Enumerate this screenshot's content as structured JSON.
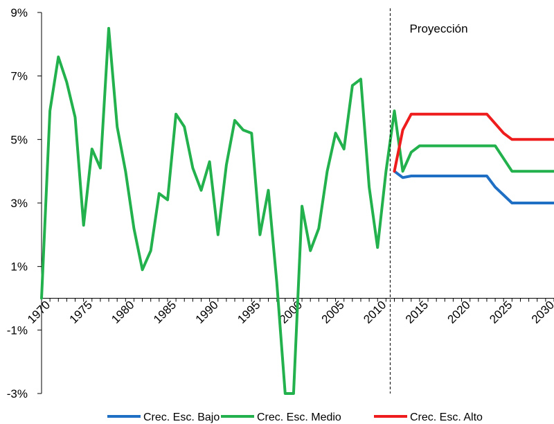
{
  "chart_data": {
    "type": "line",
    "title": "",
    "xlabel": "",
    "ylabel": "",
    "xlim": [
      1970,
      2031
    ],
    "ylim": [
      -3,
      9
    ],
    "grid": false,
    "legend_position": "bottom",
    "x_ticks": [
      1970,
      1975,
      1980,
      1985,
      1990,
      1995,
      2000,
      2005,
      2010,
      2015,
      2020,
      2025,
      2030
    ],
    "x_tick_labels": [
      "1970",
      "1975",
      "1980",
      "1985",
      "1990",
      "1995",
      "2000",
      "2005",
      "2010",
      "2015",
      "2020",
      "2025",
      "2030"
    ],
    "y_ticks": [
      -3,
      -1,
      1,
      3,
      5,
      7,
      9
    ],
    "y_tick_labels": [
      "-3%",
      "-1%",
      "1%",
      "3%",
      "5%",
      "7%",
      "9%"
    ],
    "annotation": {
      "text": "Proyección",
      "x_marker": 2011.5
    },
    "series": [
      {
        "name": "Crec. Esc. Bajo",
        "color": "#1f6fc4",
        "x": [
          2012,
          2013,
          2014,
          2015,
          2016,
          2017,
          2018,
          2019,
          2020,
          2021,
          2022,
          2023,
          2024,
          2025,
          2026,
          2027,
          2028,
          2029,
          2030,
          2031
        ],
        "values": [
          4.0,
          3.8,
          3.85,
          3.85,
          3.85,
          3.85,
          3.85,
          3.85,
          3.85,
          3.85,
          3.85,
          3.85,
          3.5,
          3.25,
          3.0,
          3.0,
          3.0,
          3.0,
          3.0,
          3.0
        ]
      },
      {
        "name": "Crec. Esc. Medio",
        "color": "#22b14c",
        "x": [
          1970,
          1971,
          1972,
          1973,
          1974,
          1975,
          1976,
          1977,
          1978,
          1979,
          1980,
          1981,
          1982,
          1983,
          1984,
          1985,
          1986,
          1987,
          1988,
          1989,
          1990,
          1991,
          1992,
          1993,
          1994,
          1995,
          1996,
          1997,
          1998,
          1999,
          2000,
          2001,
          2002,
          2003,
          2004,
          2005,
          2006,
          2007,
          2008,
          2009,
          2010,
          2011,
          2012,
          2013,
          2014,
          2015,
          2016,
          2017,
          2018,
          2019,
          2020,
          2021,
          2022,
          2023,
          2024,
          2025,
          2026,
          2027,
          2028,
          2029,
          2030,
          2031
        ],
        "values": [
          0.0,
          5.9,
          7.6,
          6.8,
          5.7,
          2.3,
          4.7,
          4.1,
          8.5,
          5.4,
          4.0,
          2.2,
          0.9,
          1.5,
          3.3,
          3.1,
          5.8,
          5.4,
          4.1,
          3.4,
          4.3,
          2.0,
          4.2,
          5.6,
          5.3,
          5.2,
          2.0,
          3.4,
          0.5,
          -3.0,
          -3.0,
          2.9,
          1.5,
          2.2,
          4.0,
          5.2,
          4.7,
          6.7,
          6.9,
          3.5,
          1.6,
          4.0,
          5.9,
          4.0,
          4.6,
          4.8,
          4.8,
          4.8,
          4.8,
          4.8,
          4.8,
          4.8,
          4.8,
          4.8,
          4.8,
          4.4,
          4.0,
          4.0,
          4.0,
          4.0,
          4.0,
          4.0
        ]
      },
      {
        "name": "Crec. Esc. Alto",
        "color": "#ee1c1c",
        "x": [
          2012,
          2013,
          2014,
          2015,
          2016,
          2017,
          2018,
          2019,
          2020,
          2021,
          2022,
          2023,
          2024,
          2025,
          2026,
          2027,
          2028,
          2029,
          2030,
          2031
        ],
        "values": [
          4.0,
          5.3,
          5.8,
          5.8,
          5.8,
          5.8,
          5.8,
          5.8,
          5.8,
          5.8,
          5.8,
          5.8,
          5.5,
          5.2,
          5.0,
          5.0,
          5.0,
          5.0,
          5.0,
          5.0
        ]
      }
    ]
  }
}
